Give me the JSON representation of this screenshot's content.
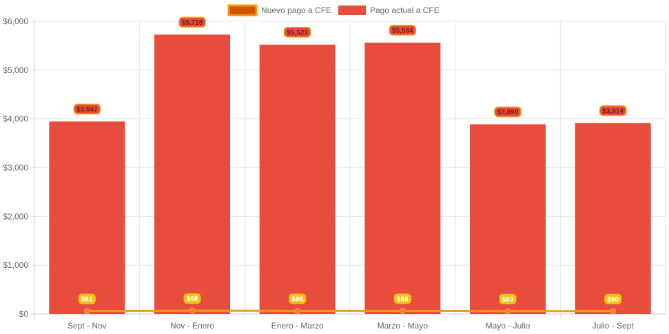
{
  "chart_data": {
    "type": "bar",
    "categories": [
      "Sept - Nov",
      "Nov - Enero",
      "Enero - Marzo",
      "Marzo - Mayo",
      "Mayo - Julio",
      "Julio - Sept"
    ],
    "series": [
      {
        "name": "Nuevo pago a CFE",
        "type": "line",
        "values": [
          61,
          68,
          66,
          66,
          60,
          60
        ],
        "labels": [
          "$61",
          "$68",
          "$66",
          "$66",
          "$60",
          "$60"
        ],
        "color": "#f39c12",
        "label_bg": "#f1c40f"
      },
      {
        "name": "Pago actual a CFE",
        "type": "bar",
        "values": [
          3947,
          5728,
          5523,
          5564,
          3890,
          3914
        ],
        "labels": [
          "$3,947",
          "$5,728",
          "$5,523",
          "$5,564",
          "$3,890",
          "$3,914"
        ],
        "color": "#e74c3c",
        "label_bg": "#e74c3c",
        "label_border": "#f39c12"
      }
    ],
    "y_ticks": [
      "$0",
      "$1,000",
      "$2,000",
      "$3,000",
      "$4,000",
      "$5,000",
      "$6,000"
    ],
    "ylim": [
      0,
      6000
    ],
    "grid": true,
    "legend_position": "top"
  }
}
